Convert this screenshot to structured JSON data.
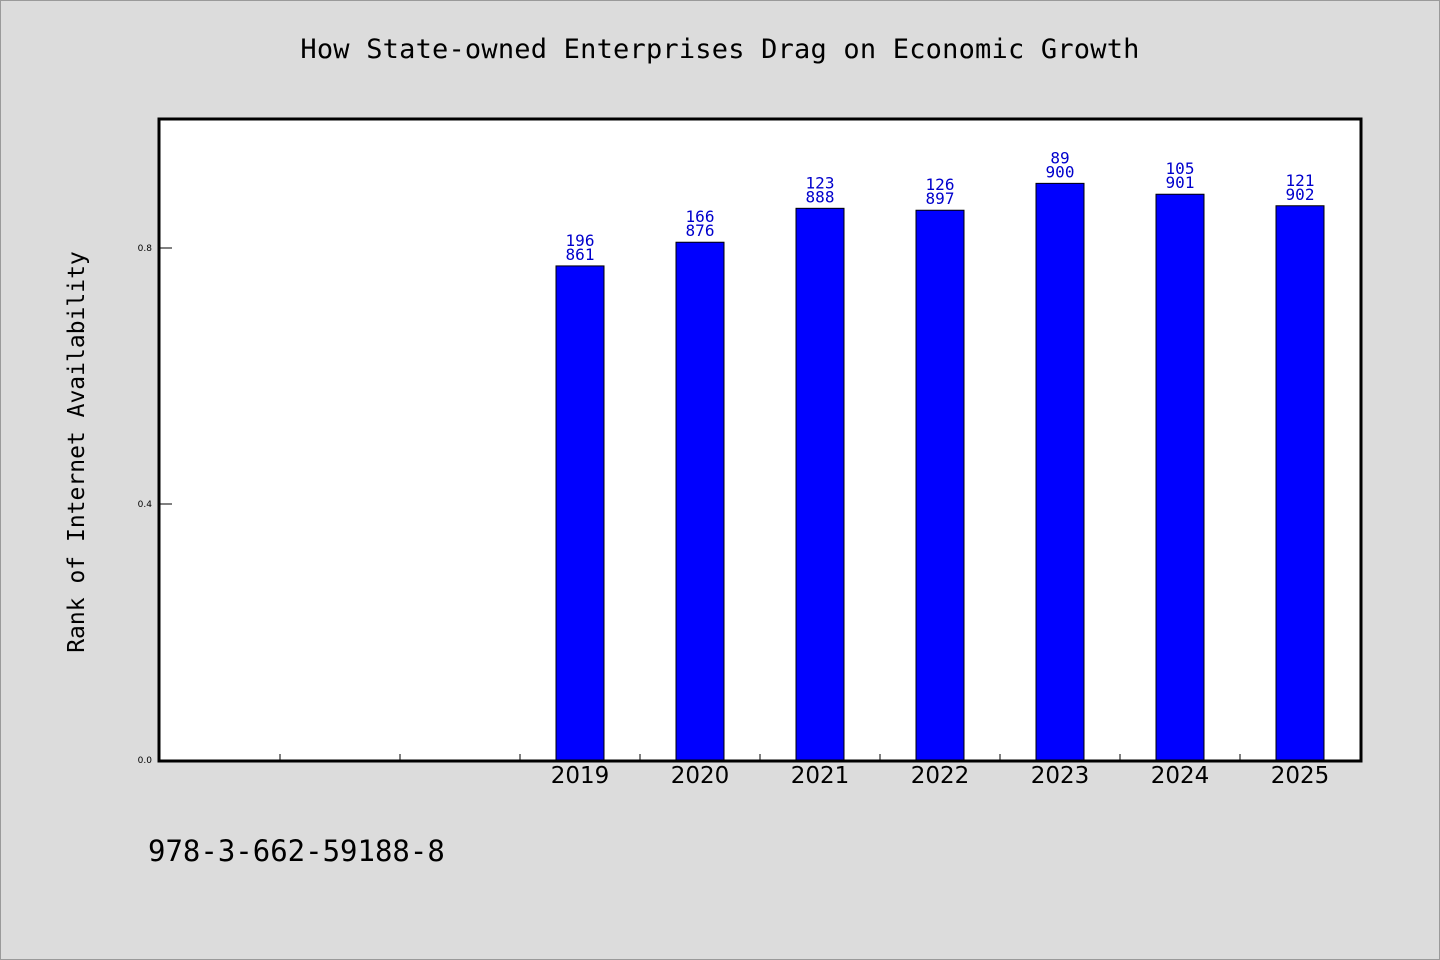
{
  "chart_data": {
    "type": "bar",
    "title": "How State-owned Enterprises Drag on Economic Growth",
    "xlabel": "",
    "ylabel": "Rank of Internet Availability",
    "ylim": [
      0,
      1.0
    ],
    "yticks": [
      0.0,
      0.4,
      0.8
    ],
    "ytick_labels": [
      "0.0",
      "0.4",
      "0.8"
    ],
    "categories": [
      "",
      "",
      "",
      "2019",
      "2020",
      "2021",
      "2022",
      "2023",
      "2024",
      "2025"
    ],
    "values": [
      null,
      null,
      null,
      0.772,
      0.809,
      0.862,
      0.859,
      0.901,
      0.884,
      0.866
    ],
    "bar_labels_top": [
      "",
      "",
      "",
      "196",
      "166",
      "123",
      "126",
      "89",
      "105",
      "121"
    ],
    "bar_labels_bottom": [
      "",
      "",
      "",
      "861",
      "876",
      "888",
      "897",
      "900",
      "901",
      "902"
    ],
    "grid": false,
    "colors": {
      "bar": "#0000ff",
      "bar_label": "#0000cc",
      "background": "#dcdcdc",
      "plot_background": "#ffffff"
    }
  },
  "footer": {
    "code": "978-3-662-59188-8"
  }
}
